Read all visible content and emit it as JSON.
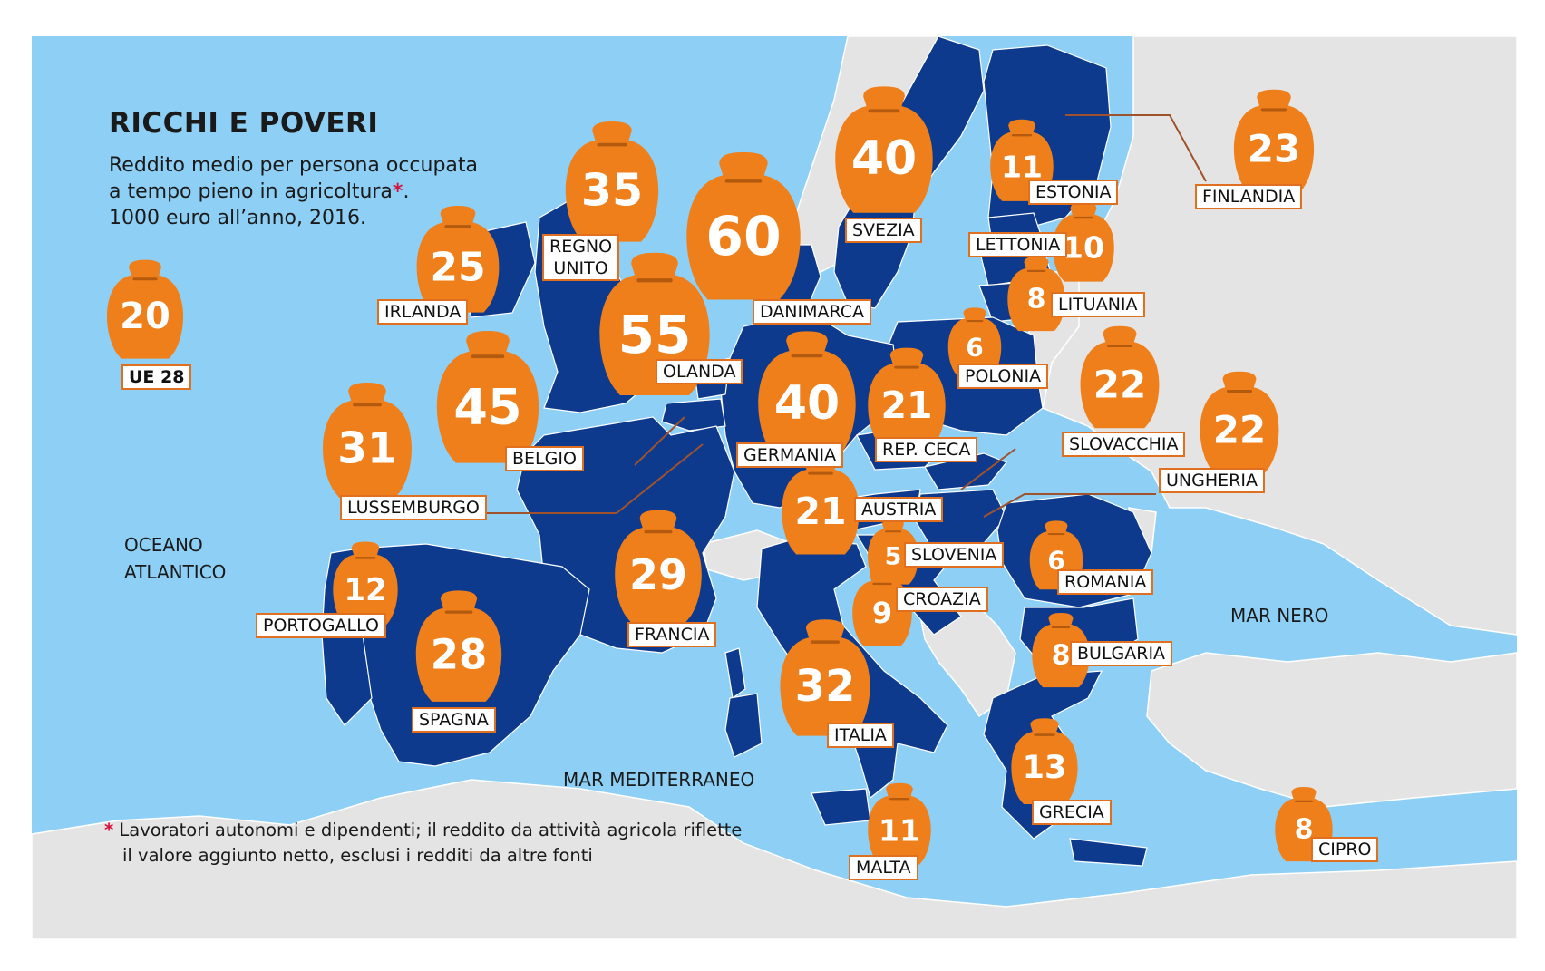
{
  "title": "RICCHI E POVERI",
  "subtitle_line1": "Reddito medio per persona occupata",
  "subtitle_line2": "a tempo pieno in agricoltura",
  "subtitle_star": "*",
  "subtitle_line2_end": ".",
  "subtitle_line3": "1000 euro all’anno, 2016.",
  "footnote_star": "*",
  "footnote_line1": "Lavoratori autonomi e dipendenti; il reddito da attività agricola riflette",
  "footnote_line2": "il valore aggiunto netto, esclusi i redditi da altre fonti",
  "seas": {
    "atlantic_1": "OCEANO",
    "atlantic_2": "ATLANTICO",
    "mediterranean": "MAR MEDITERRANEO",
    "black_sea": "MAR NERO"
  },
  "colors": {
    "sea": "#8ecff5",
    "eu_country": "#0d3a8c",
    "non_eu_land": "#e4e4e4",
    "jar": "#ef7f1a",
    "label_border": "#e07020",
    "asterisk": "#d4123c"
  },
  "icon": "piggy-bank-jar-icon",
  "countries": [
    {
      "id": "ue28",
      "name": "UE 28",
      "value": 20
    },
    {
      "id": "irlanda",
      "name": "IRLANDA",
      "value": 25
    },
    {
      "id": "regno-unito",
      "name": "REGNO UNITO",
      "value": 35
    },
    {
      "id": "danimarca",
      "name": "DANIMARCA",
      "value": 60
    },
    {
      "id": "svezia",
      "name": "SVEZIA",
      "value": 40
    },
    {
      "id": "estonia",
      "name": "ESTONIA",
      "value": 11
    },
    {
      "id": "finlandia",
      "name": "FINLANDIA",
      "value": 23
    },
    {
      "id": "lettonia",
      "name": "LETTONIA",
      "value": 10
    },
    {
      "id": "lituania",
      "name": "LITUANIA",
      "value": 8
    },
    {
      "id": "olanda",
      "name": "OLANDA",
      "value": 55
    },
    {
      "id": "polonia",
      "name": "POLONIA",
      "value": 6
    },
    {
      "id": "belgio",
      "name": "BELGIO",
      "value": 45
    },
    {
      "id": "germania",
      "name": "GERMANIA",
      "value": 40
    },
    {
      "id": "rep-ceca",
      "name": "REP. CECA",
      "value": 21
    },
    {
      "id": "slovacchia",
      "name": "SLOVACCHIA",
      "value": 22
    },
    {
      "id": "ungheria",
      "name": "UNGHERIA",
      "value": 22
    },
    {
      "id": "lussemburgo",
      "name": "LUSSEMBURGO",
      "value": 31
    },
    {
      "id": "austria",
      "name": "AUSTRIA",
      "value": 21
    },
    {
      "id": "slovenia",
      "name": "SLOVENIA",
      "value": 5
    },
    {
      "id": "romania",
      "name": "ROMANIA",
      "value": 6
    },
    {
      "id": "croazia",
      "name": "CROAZIA",
      "value": 9
    },
    {
      "id": "francia",
      "name": "FRANCIA",
      "value": 29
    },
    {
      "id": "portogallo",
      "name": "PORTOGALLO",
      "value": 12
    },
    {
      "id": "spagna",
      "name": "SPAGNA",
      "value": 28
    },
    {
      "id": "bulgaria",
      "name": "BULGARIA",
      "value": 8
    },
    {
      "id": "italia",
      "name": "ITALIA",
      "value": 32
    },
    {
      "id": "grecia",
      "name": "GRECIA",
      "value": 13
    },
    {
      "id": "malta",
      "name": "MALTA",
      "value": 11
    },
    {
      "id": "cipro",
      "name": "CIPRO",
      "value": 8
    }
  ]
}
